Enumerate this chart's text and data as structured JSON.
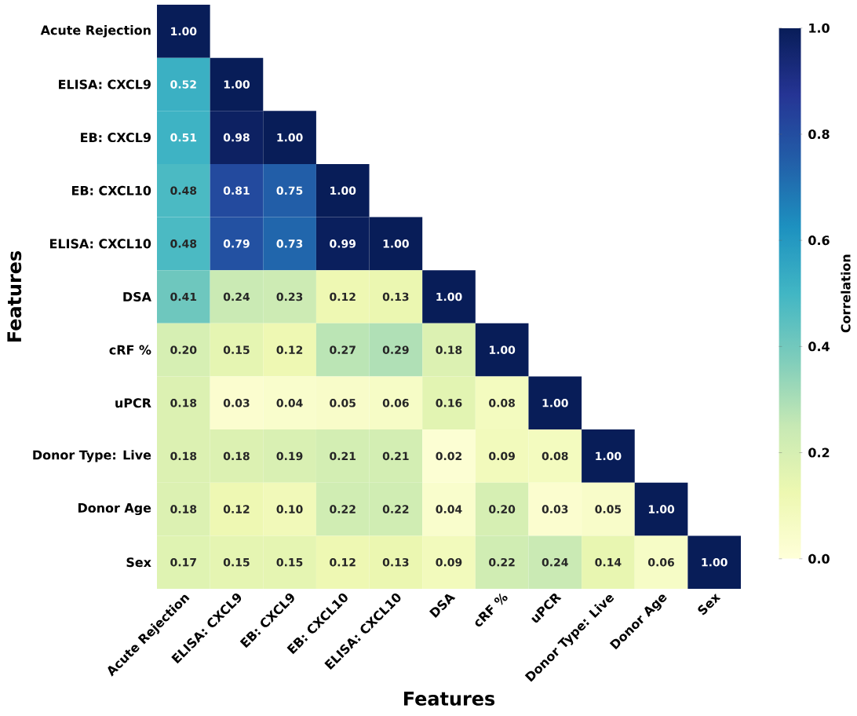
{
  "chart_data": {
    "type": "heatmap",
    "xlabel": "Features",
    "ylabel": "Features",
    "clabel": "Correlation",
    "categories": [
      "Acute Rejection",
      "ELISA: CXCL9",
      "EB: CXCL9",
      "EB: CXCL10",
      "ELISA: CXCL10",
      "DSA",
      "cRF %",
      "uPCR",
      "Donor Type: Live",
      "Donor Age",
      "Sex"
    ],
    "y_categories": [
      "Acute Rejection",
      "ELISA: CXCL9",
      "EB: CXCL9",
      "EB: CXCL10",
      "ELISA: CXCL10",
      "DSA",
      "cRF %",
      "uPCR",
      "Donor Type: Live",
      "Donor Age",
      "Sex"
    ],
    "cells": [
      [
        1.0,
        null,
        null,
        null,
        null,
        null,
        null,
        null,
        null,
        null,
        null
      ],
      [
        0.52,
        1.0,
        null,
        null,
        null,
        null,
        null,
        null,
        null,
        null,
        null
      ],
      [
        0.51,
        0.98,
        1.0,
        null,
        null,
        null,
        null,
        null,
        null,
        null,
        null
      ],
      [
        0.48,
        0.81,
        0.75,
        1.0,
        null,
        null,
        null,
        null,
        null,
        null,
        null
      ],
      [
        0.48,
        0.79,
        0.73,
        0.99,
        1.0,
        null,
        null,
        null,
        null,
        null,
        null
      ],
      [
        0.41,
        0.24,
        0.23,
        0.12,
        0.13,
        1.0,
        null,
        null,
        null,
        null,
        null
      ],
      [
        0.2,
        0.15,
        0.12,
        0.27,
        0.29,
        0.18,
        1.0,
        null,
        null,
        null,
        null
      ],
      [
        0.18,
        0.03,
        0.04,
        0.05,
        0.06,
        0.16,
        0.08,
        1.0,
        null,
        null,
        null
      ],
      [
        0.18,
        0.18,
        0.19,
        0.21,
        0.21,
        0.02,
        0.09,
        0.08,
        1.0,
        null,
        null
      ],
      [
        0.18,
        0.12,
        0.1,
        0.22,
        0.22,
        0.04,
        0.2,
        0.03,
        0.05,
        1.0,
        null
      ],
      [
        0.17,
        0.15,
        0.15,
        0.12,
        0.13,
        0.09,
        0.22,
        0.24,
        0.14,
        0.06,
        1.0
      ]
    ],
    "cell_labels": [
      [
        "1.00",
        null,
        null,
        null,
        null,
        null,
        null,
        null,
        null,
        null,
        null
      ],
      [
        "0.52",
        "1.00",
        null,
        null,
        null,
        null,
        null,
        null,
        null,
        null,
        null
      ],
      [
        "0.51",
        "0.98",
        "1.00",
        null,
        null,
        null,
        null,
        null,
        null,
        null,
        null
      ],
      [
        "0.48",
        "0.81",
        "0.75",
        "1.00",
        null,
        null,
        null,
        null,
        null,
        null,
        null
      ],
      [
        "0.48",
        "0.79",
        "0.73",
        "0.99",
        "1.00",
        null,
        null,
        null,
        null,
        null,
        null
      ],
      [
        "0.41",
        "0.24",
        "0.23",
        "0.12",
        "0.13",
        "1.00",
        null,
        null,
        null,
        null,
        null
      ],
      [
        "0.20",
        "0.15",
        "0.12",
        "0.27",
        "0.29",
        "0.18",
        "1.00",
        null,
        null,
        null,
        null
      ],
      [
        "0.18",
        "0.03",
        "0.04",
        "0.05",
        "0.06",
        "0.16",
        "0.08",
        "1.00",
        null,
        null,
        null
      ],
      [
        "0.18",
        "0.18",
        "0.19",
        "0.21",
        "0.21",
        "0.02",
        "0.09",
        "0.08",
        "1.00",
        null,
        null
      ],
      [
        "0.18",
        "0.12",
        "0.10",
        "0.22",
        "0.22",
        "0.04",
        "0.20",
        "0.03",
        "0.05",
        "1.00",
        null
      ],
      [
        "0.17",
        "0.15",
        "0.15",
        "0.12",
        "0.13",
        "0.09",
        "0.22",
        "0.24",
        "0.14",
        "0.06",
        "1.00"
      ]
    ],
    "clim": [
      0,
      1
    ],
    "cticks": [
      {
        "value": 0,
        "label": "0.0"
      },
      {
        "value": 0.2,
        "label": "0.2"
      },
      {
        "value": 0.4,
        "label": "0.4"
      },
      {
        "value": 0.6,
        "label": "0.6"
      },
      {
        "value": 0.8,
        "label": "0.8"
      },
      {
        "value": 1,
        "label": "1.0"
      }
    ]
  }
}
